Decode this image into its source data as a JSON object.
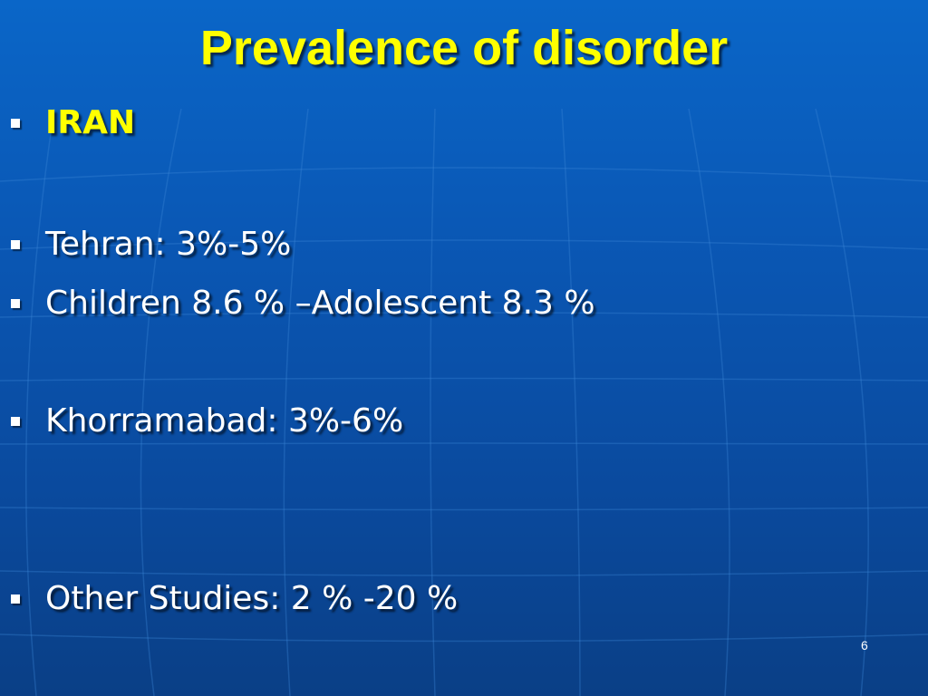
{
  "slide": {
    "title": "Prevalence of disorder",
    "bullets": [
      {
        "text": "IRAN"
      },
      {
        "text": "Tehran: 3%-5%"
      },
      {
        "text": "Children 8.6 % –Adolescent 8.3 %"
      },
      {
        "text": "Khorramabad: 3%-6%"
      },
      {
        "text": "Other Studies: 2 % -20 %"
      }
    ],
    "page_number": "6"
  },
  "colors": {
    "background": "#0a57b4",
    "title": "#ffff00",
    "text": "#ffffff",
    "bullet": "#ffffff"
  }
}
